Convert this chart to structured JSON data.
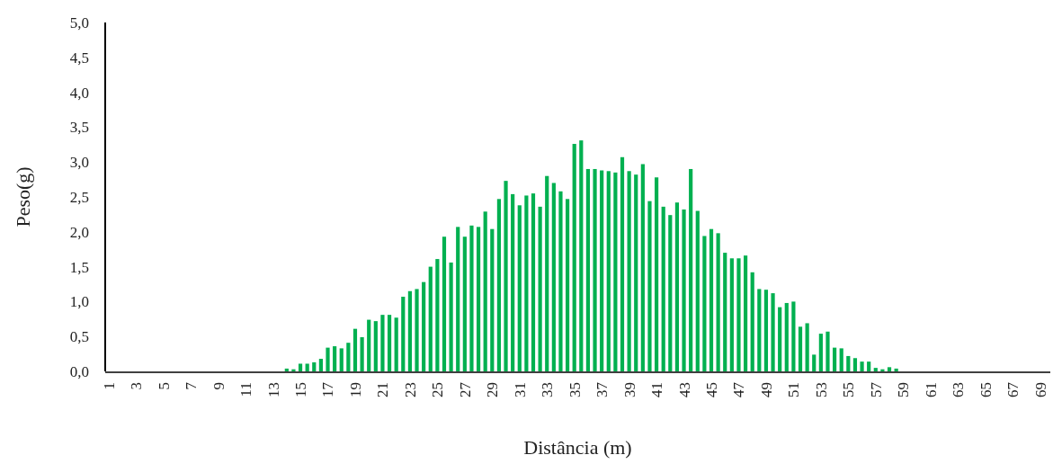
{
  "chart_data": {
    "type": "bar",
    "xlabel": "Distância (m)",
    "ylabel": "Peso(g)",
    "categories": [
      "1",
      null,
      null,
      null,
      "3",
      null,
      null,
      null,
      "5",
      null,
      null,
      null,
      "7",
      null,
      null,
      null,
      "9",
      null,
      null,
      null,
      "11",
      null,
      null,
      null,
      "13",
      null,
      null,
      null,
      "15",
      null,
      null,
      null,
      "17",
      null,
      null,
      null,
      "19",
      null,
      null,
      null,
      "21",
      null,
      null,
      null,
      "23",
      null,
      null,
      null,
      "25",
      null,
      null,
      null,
      "27",
      null,
      null,
      null,
      "29",
      null,
      null,
      null,
      "31",
      null,
      null,
      null,
      "33",
      null,
      null,
      null,
      "35",
      null,
      null,
      null,
      "37",
      null,
      null,
      null,
      "39",
      null,
      null,
      null,
      "41",
      null,
      null,
      null,
      "43",
      null,
      null,
      null,
      "45",
      null,
      null,
      null,
      "47",
      null,
      null,
      null,
      "49",
      null,
      null,
      null,
      "51",
      null,
      null,
      null,
      "53",
      null,
      null,
      null,
      "55",
      null,
      null,
      null,
      "57",
      null,
      null,
      null,
      "59",
      null,
      null,
      null,
      "61",
      null,
      null,
      null,
      "63",
      null,
      null,
      null,
      "65",
      null,
      null,
      null,
      "67",
      null,
      null,
      null,
      "69",
      null
    ],
    "values": [
      0,
      0,
      0,
      0,
      0,
      0,
      0,
      0,
      0,
      0,
      0,
      0,
      0,
      0,
      0,
      0,
      0,
      0,
      0,
      0,
      0,
      0,
      0,
      0,
      0,
      0,
      0.04,
      0.03,
      0.11,
      0.11,
      0.13,
      0.18,
      0.34,
      0.36,
      0.33,
      0.41,
      0.61,
      0.49,
      0.74,
      0.72,
      0.81,
      0.81,
      0.77,
      1.07,
      1.15,
      1.18,
      1.28,
      1.5,
      1.61,
      1.93,
      1.56,
      2.07,
      1.93,
      2.09,
      2.07,
      2.29,
      2.04,
      2.47,
      2.73,
      2.54,
      2.38,
      2.52,
      2.55,
      2.36,
      2.8,
      2.7,
      2.58,
      2.47,
      3.26,
      3.31,
      2.9,
      2.9,
      2.88,
      2.87,
      2.85,
      3.07,
      2.87,
      2.82,
      2.97,
      2.44,
      2.78,
      2.36,
      2.24,
      2.42,
      2.32,
      2.9,
      2.3,
      1.94,
      2.04,
      1.98,
      1.7,
      1.62,
      1.62,
      1.66,
      1.42,
      1.18,
      1.17,
      1.12,
      0.92,
      0.98,
      1.0,
      0.64,
      0.69,
      0.24,
      0.54,
      0.57,
      0.34,
      0.33,
      0.22,
      0.19,
      0.14,
      0.14,
      0.05,
      0.03,
      0.06,
      0.04,
      0,
      0,
      0,
      0,
      0,
      0,
      0,
      0,
      0,
      0,
      0,
      0,
      0,
      0,
      0,
      0,
      0,
      0,
      0,
      0,
      0,
      0
    ],
    "color": "#00b050",
    "ylim": [
      0,
      5
    ],
    "yticks": [
      {
        "value": 0,
        "label": "0,0"
      },
      {
        "value": 0.5,
        "label": "0,5"
      },
      {
        "value": 1,
        "label": "1,0"
      },
      {
        "value": 1.5,
        "label": "1,5"
      },
      {
        "value": 2,
        "label": "2,0"
      },
      {
        "value": 2.5,
        "label": "2,5"
      },
      {
        "value": 3,
        "label": "3,0"
      },
      {
        "value": 3.5,
        "label": "3,5"
      },
      {
        "value": 4,
        "label": "4,0"
      },
      {
        "value": 4.5,
        "label": "4,5"
      },
      {
        "value": 5,
        "label": "5,0"
      }
    ],
    "grid": false
  }
}
